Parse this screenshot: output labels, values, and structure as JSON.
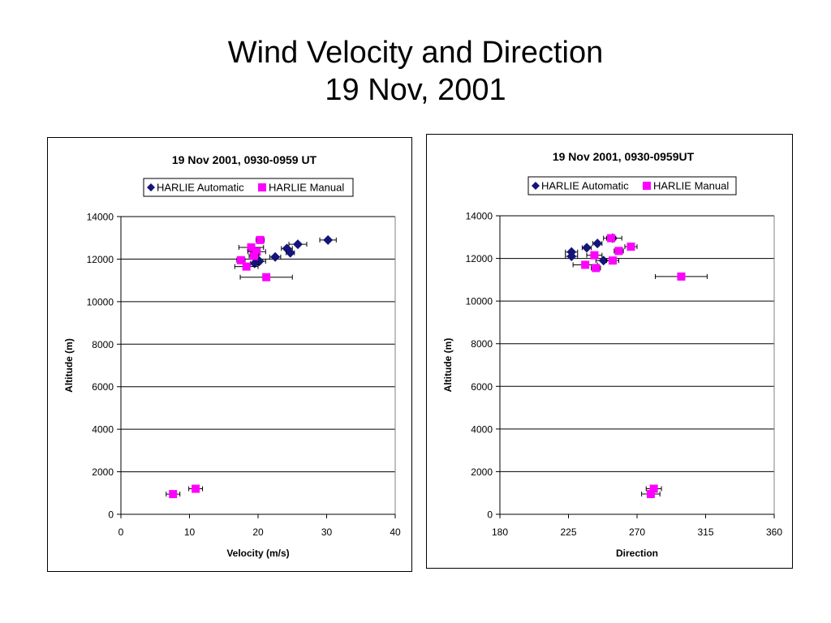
{
  "slide": {
    "title_line1": "Wind Velocity and Direction",
    "title_line2": "19 Nov, 2001"
  },
  "colors": {
    "automatic": "#14147a",
    "manual": "#ff00ff",
    "axis": "#000000",
    "grid": "#000000"
  },
  "chart_data": [
    {
      "type": "scatter",
      "title": "19 Nov 2001, 0930-0959 UT",
      "xlabel": "Velocity (m/s)",
      "ylabel": "Altitude (m)",
      "xlim": [
        0,
        40
      ],
      "ylim": [
        0,
        14000
      ],
      "xticks": [
        "0",
        "10",
        "20",
        "30",
        "40"
      ],
      "yticks": [
        "0",
        "2000",
        "4000",
        "6000",
        "8000",
        "10000",
        "12000",
        "14000"
      ],
      "grid": "horizontal",
      "legend_position": "top",
      "series": [
        {
          "name": "HARLIE Automatic",
          "marker": "diamond",
          "points": [
            {
              "x": 30.2,
              "y": 12900,
              "err": 1.2
            },
            {
              "x": 25.8,
              "y": 12700,
              "err": 1.3
            },
            {
              "x": 24.2,
              "y": 12500,
              "err": 0.8
            },
            {
              "x": 24.7,
              "y": 12300,
              "err": 0.6
            },
            {
              "x": 22.5,
              "y": 12100,
              "err": 0.8
            },
            {
              "x": 20.2,
              "y": 11900,
              "err": 0.9
            },
            {
              "x": 19.5,
              "y": 11800,
              "err": 0.6
            }
          ]
        },
        {
          "name": "HARLIE Manual",
          "marker": "square",
          "points": [
            {
              "x": 20.3,
              "y": 12900,
              "err": 0.6
            },
            {
              "x": 19.0,
              "y": 12550,
              "err": 1.8
            },
            {
              "x": 19.8,
              "y": 12350,
              "err": 1.3
            },
            {
              "x": 19.4,
              "y": 12150,
              "err": 0.7
            },
            {
              "x": 17.5,
              "y": 11950,
              "err": 0.6
            },
            {
              "x": 18.3,
              "y": 11650,
              "err": 1.7
            },
            {
              "x": 21.2,
              "y": 11150,
              "err": 3.8
            },
            {
              "x": 10.9,
              "y": 1200,
              "err": 1.0
            },
            {
              "x": 7.6,
              "y": 950,
              "err": 1.0
            }
          ]
        }
      ]
    },
    {
      "type": "scatter",
      "title": "19 Nov 2001, 0930-0959UT",
      "xlabel": "Direction",
      "ylabel": "Altitude (m)",
      "xlim": [
        180,
        360
      ],
      "ylim": [
        0,
        14000
      ],
      "xticks": [
        "180",
        "225",
        "270",
        "315",
        "360"
      ],
      "yticks": [
        "0",
        "2000",
        "4000",
        "6000",
        "8000",
        "10000",
        "12000",
        "14000"
      ],
      "grid": "horizontal",
      "legend_position": "top",
      "series": [
        {
          "name": "HARLIE Automatic",
          "marker": "diamond",
          "points": [
            {
              "x": 254,
              "y": 12950,
              "err": 6
            },
            {
              "x": 244,
              "y": 12700,
              "err": 3
            },
            {
              "x": 237,
              "y": 12500,
              "err": 3
            },
            {
              "x": 227,
              "y": 12300,
              "err": 4
            },
            {
              "x": 227,
              "y": 12100,
              "err": 4
            },
            {
              "x": 248,
              "y": 11900,
              "err": 5
            }
          ]
        },
        {
          "name": "HARLIE Manual",
          "marker": "square",
          "points": [
            {
              "x": 253,
              "y": 12950,
              "err": 3
            },
            {
              "x": 266,
              "y": 12550,
              "err": 4
            },
            {
              "x": 258,
              "y": 12350,
              "err": 3
            },
            {
              "x": 242,
              "y": 12150,
              "err": 5
            },
            {
              "x": 254,
              "y": 11900,
              "err": 4
            },
            {
              "x": 236,
              "y": 11700,
              "err": 8
            },
            {
              "x": 243,
              "y": 11550,
              "err": 3
            },
            {
              "x": 299,
              "y": 11150,
              "err": 17
            },
            {
              "x": 281,
              "y": 1200,
              "err": 5
            },
            {
              "x": 279,
              "y": 950,
              "err": 6
            }
          ]
        }
      ]
    }
  ]
}
